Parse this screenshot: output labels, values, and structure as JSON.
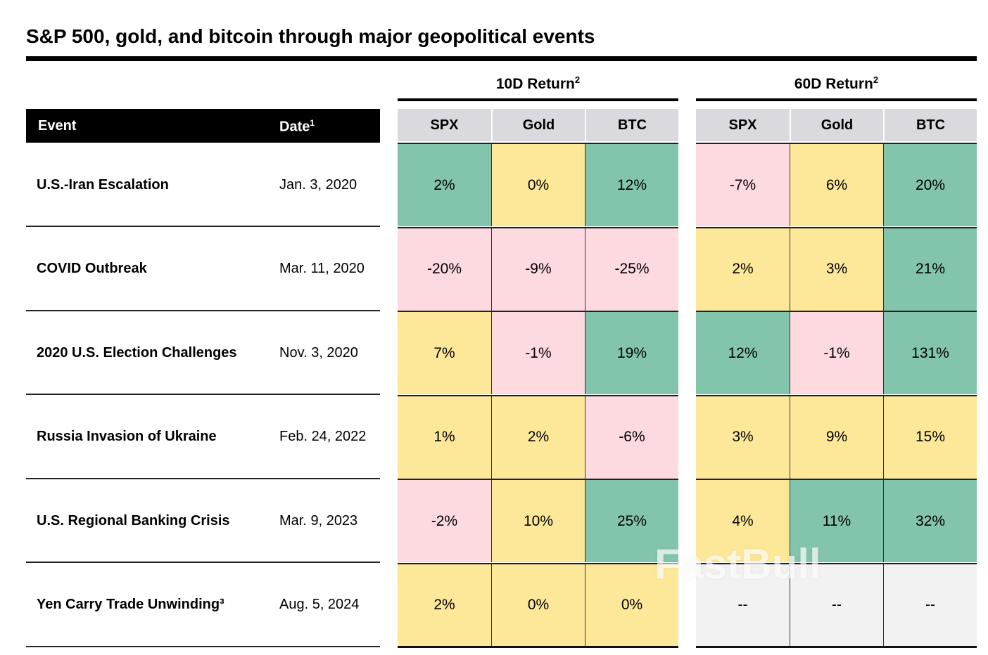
{
  "chart_data": {
    "type": "table",
    "title": "S&P 500, gold, and bitcoin through major geopolitical events",
    "event_header": "Event",
    "date_header": "Date",
    "date_footnote": "1",
    "groups": [
      {
        "label": "10D Return",
        "footnote": "2",
        "columns": [
          "SPX",
          "Gold",
          "BTC"
        ]
      },
      {
        "label": "60D Return",
        "footnote": "2",
        "columns": [
          "SPX",
          "Gold",
          "BTC"
        ]
      }
    ],
    "rows": [
      {
        "event": "U.S.-Iran Escalation",
        "date": "Jan. 3, 2020",
        "r10": [
          "2%",
          "0%",
          "12%"
        ],
        "r60": [
          "-7%",
          "6%",
          "20%"
        ],
        "c10": [
          "green",
          "yellow",
          "green"
        ],
        "c60": [
          "pink",
          "yellow",
          "green"
        ]
      },
      {
        "event": "COVID Outbreak",
        "date": "Mar. 11, 2020",
        "r10": [
          "-20%",
          "-9%",
          "-25%"
        ],
        "r60": [
          "2%",
          "3%",
          "21%"
        ],
        "c10": [
          "pink",
          "pink",
          "pink"
        ],
        "c60": [
          "yellow",
          "yellow",
          "green"
        ]
      },
      {
        "event": "2020 U.S. Election Challenges",
        "date": "Nov. 3, 2020",
        "r10": [
          "7%",
          "-1%",
          "19%"
        ],
        "r60": [
          "12%",
          "-1%",
          "131%"
        ],
        "c10": [
          "yellow",
          "pink",
          "green"
        ],
        "c60": [
          "green",
          "pink",
          "green"
        ]
      },
      {
        "event": "Russia Invasion of Ukraine",
        "date": "Feb. 24, 2022",
        "r10": [
          "1%",
          "2%",
          "-6%"
        ],
        "r60": [
          "3%",
          "9%",
          "15%"
        ],
        "c10": [
          "yellow",
          "yellow",
          "pink"
        ],
        "c60": [
          "yellow",
          "yellow",
          "yellow"
        ]
      },
      {
        "event": "U.S. Regional Banking Crisis",
        "date": "Mar. 9, 2023",
        "r10": [
          "-2%",
          "10%",
          "25%"
        ],
        "r60": [
          "4%",
          "11%",
          "32%"
        ],
        "c10": [
          "pink",
          "yellow",
          "green"
        ],
        "c60": [
          "yellow",
          "green",
          "green"
        ]
      },
      {
        "event": "Yen Carry Trade Unwinding³",
        "date": "Aug. 5, 2024",
        "r10": [
          "2%",
          "0%",
          "0%"
        ],
        "r60": [
          "--",
          "--",
          "--"
        ],
        "c10": [
          "yellow",
          "yellow",
          "yellow"
        ],
        "c60": [
          "gray",
          "gray",
          "gray"
        ]
      }
    ],
    "colors": {
      "green": "#82c4ac",
      "yellow": "#fde89a",
      "pink": "#fdd9e0",
      "gray": "#f2f2f2",
      "header": "#d9d9df"
    }
  },
  "watermark": "FastBull"
}
